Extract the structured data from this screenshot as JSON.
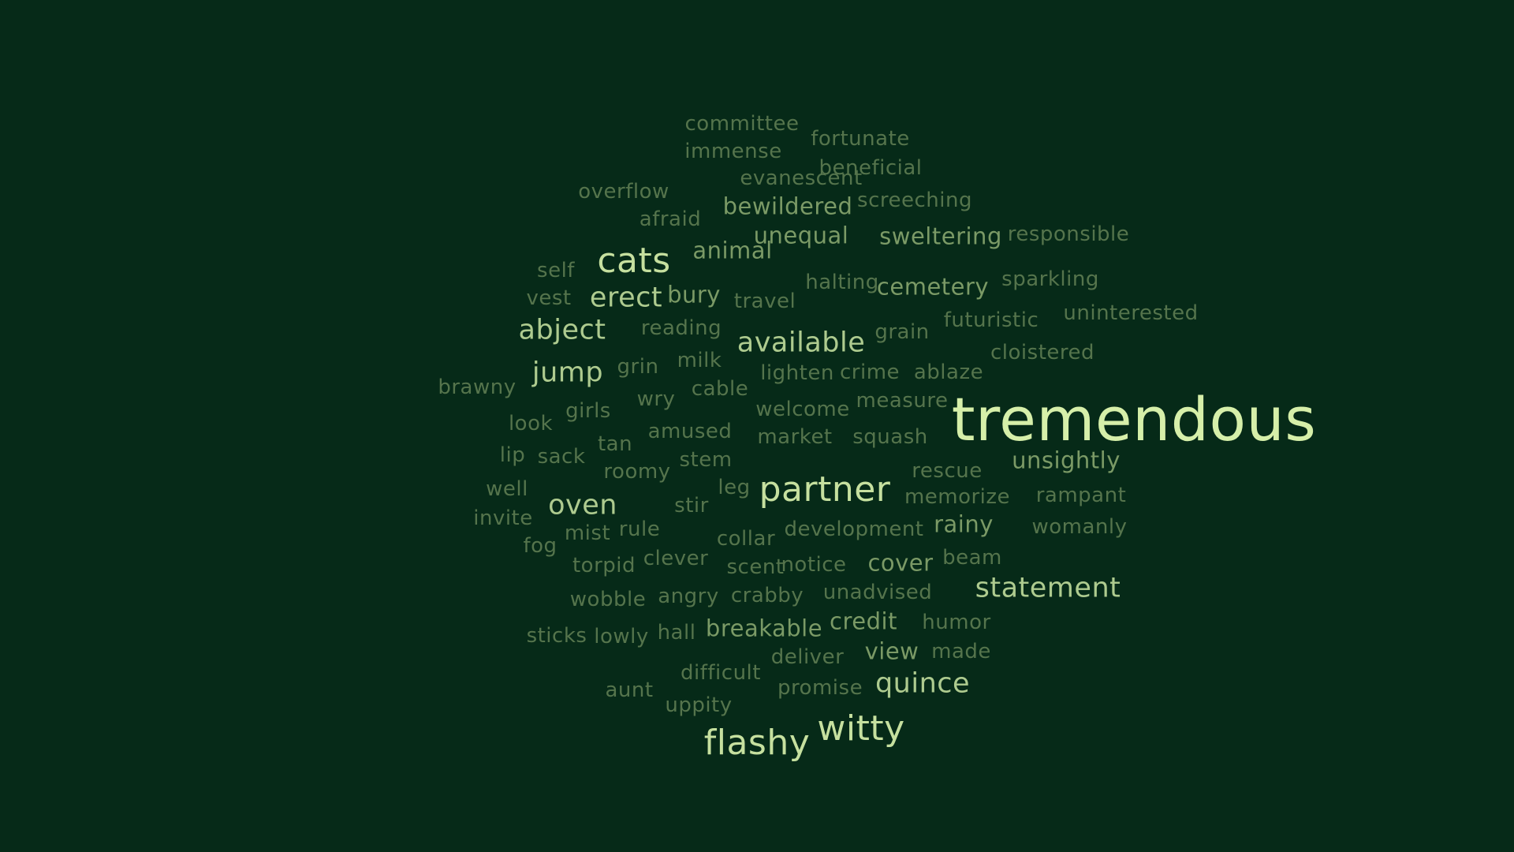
{
  "words": [
    {
      "text": "committee",
      "weight": 1
    },
    {
      "text": "fortunate",
      "weight": 1
    },
    {
      "text": "immense",
      "weight": 1
    },
    {
      "text": "beneficial",
      "weight": 1
    },
    {
      "text": "evanescent",
      "weight": 1
    },
    {
      "text": "overflow",
      "weight": 1
    },
    {
      "text": "bewildered",
      "weight": 2
    },
    {
      "text": "screeching",
      "weight": 1
    },
    {
      "text": "afraid",
      "weight": 1
    },
    {
      "text": "unequal",
      "weight": 2
    },
    {
      "text": "sweltering",
      "weight": 2
    },
    {
      "text": "responsible",
      "weight": 1
    },
    {
      "text": "cats",
      "weight": 4
    },
    {
      "text": "animal",
      "weight": 2
    },
    {
      "text": "self",
      "weight": 1
    },
    {
      "text": "halting",
      "weight": 1
    },
    {
      "text": "cemetery",
      "weight": 2
    },
    {
      "text": "sparkling",
      "weight": 1
    },
    {
      "text": "vest",
      "weight": 1
    },
    {
      "text": "erect",
      "weight": 3
    },
    {
      "text": "bury",
      "weight": 2
    },
    {
      "text": "travel",
      "weight": 1
    },
    {
      "text": "futuristic",
      "weight": 1
    },
    {
      "text": "uninterested",
      "weight": 1
    },
    {
      "text": "abject",
      "weight": 3
    },
    {
      "text": "reading",
      "weight": 1
    },
    {
      "text": "available",
      "weight": 3
    },
    {
      "text": "grain",
      "weight": 1
    },
    {
      "text": "cloistered",
      "weight": 1
    },
    {
      "text": "jump",
      "weight": 3
    },
    {
      "text": "grin",
      "weight": 1
    },
    {
      "text": "milk",
      "weight": 1
    },
    {
      "text": "lighten",
      "weight": 1
    },
    {
      "text": "crime",
      "weight": 1
    },
    {
      "text": "ablaze",
      "weight": 1
    },
    {
      "text": "brawny",
      "weight": 1
    },
    {
      "text": "wry",
      "weight": 1
    },
    {
      "text": "cable",
      "weight": 1
    },
    {
      "text": "measure",
      "weight": 1
    },
    {
      "text": "tremendous",
      "weight": 5
    },
    {
      "text": "look",
      "weight": 1
    },
    {
      "text": "girls",
      "weight": 1
    },
    {
      "text": "welcome",
      "weight": 1
    },
    {
      "text": "amused",
      "weight": 1
    },
    {
      "text": "market",
      "weight": 1
    },
    {
      "text": "squash",
      "weight": 1
    },
    {
      "text": "lip",
      "weight": 1
    },
    {
      "text": "sack",
      "weight": 1
    },
    {
      "text": "tan",
      "weight": 1
    },
    {
      "text": "stem",
      "weight": 1
    },
    {
      "text": "unsightly",
      "weight": 2
    },
    {
      "text": "roomy",
      "weight": 1
    },
    {
      "text": "rescue",
      "weight": 1
    },
    {
      "text": "well",
      "weight": 1
    },
    {
      "text": "leg",
      "weight": 1
    },
    {
      "text": "partner",
      "weight": 4
    },
    {
      "text": "memorize",
      "weight": 1
    },
    {
      "text": "rampant",
      "weight": 1
    },
    {
      "text": "oven",
      "weight": 3
    },
    {
      "text": "stir",
      "weight": 1
    },
    {
      "text": "invite",
      "weight": 1
    },
    {
      "text": "mist",
      "weight": 1
    },
    {
      "text": "rule",
      "weight": 1
    },
    {
      "text": "collar",
      "weight": 1
    },
    {
      "text": "development",
      "weight": 1
    },
    {
      "text": "rainy",
      "weight": 2
    },
    {
      "text": "womanly",
      "weight": 1
    },
    {
      "text": "fog",
      "weight": 1
    },
    {
      "text": "torpid",
      "weight": 1
    },
    {
      "text": "clever",
      "weight": 1
    },
    {
      "text": "scent",
      "weight": 1
    },
    {
      "text": "notice",
      "weight": 1
    },
    {
      "text": "cover",
      "weight": 2
    },
    {
      "text": "beam",
      "weight": 1
    },
    {
      "text": "statement",
      "weight": 3
    },
    {
      "text": "wobble",
      "weight": 1
    },
    {
      "text": "angry",
      "weight": 1
    },
    {
      "text": "crabby",
      "weight": 1
    },
    {
      "text": "unadvised",
      "weight": 1
    },
    {
      "text": "sticks",
      "weight": 1
    },
    {
      "text": "lowly",
      "weight": 1
    },
    {
      "text": "hall",
      "weight": 1
    },
    {
      "text": "breakable",
      "weight": 2
    },
    {
      "text": "credit",
      "weight": 2
    },
    {
      "text": "humor",
      "weight": 1
    },
    {
      "text": "difficult",
      "weight": 1
    },
    {
      "text": "deliver",
      "weight": 1
    },
    {
      "text": "view",
      "weight": 2
    },
    {
      "text": "made",
      "weight": 1
    },
    {
      "text": "aunt",
      "weight": 1
    },
    {
      "text": "promise",
      "weight": 1
    },
    {
      "text": "quince",
      "weight": 3
    },
    {
      "text": "uppity",
      "weight": 1
    },
    {
      "text": "flashy",
      "weight": 4
    },
    {
      "text": "witty",
      "weight": 4
    }
  ]
}
